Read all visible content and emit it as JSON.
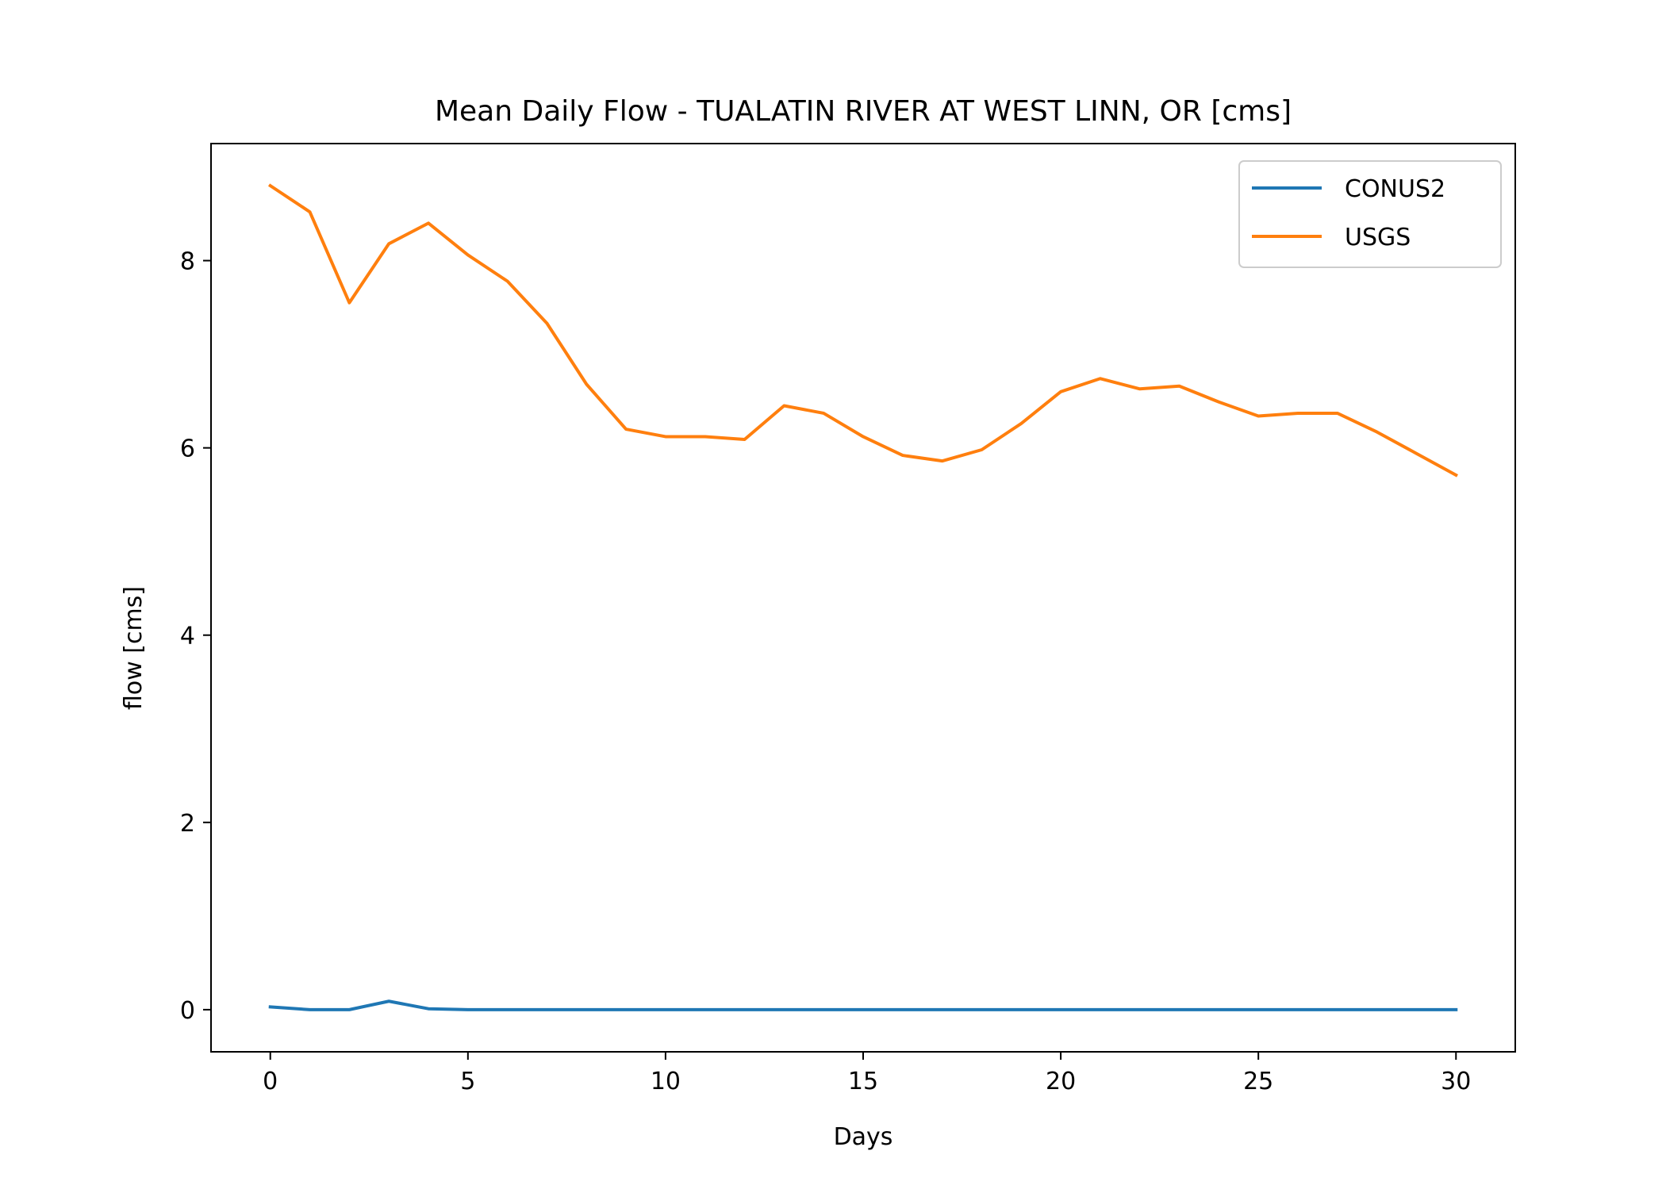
{
  "chart_data": {
    "type": "line",
    "title": "Mean Daily Flow - TUALATIN RIVER AT WEST LINN, OR [cms]",
    "xlabel": "Days",
    "ylabel": "flow [cms]",
    "xlim": [
      -1.5,
      31.5
    ],
    "ylim": [
      -0.45,
      9.25
    ],
    "xticks": [
      0,
      5,
      10,
      15,
      20,
      25,
      30
    ],
    "yticks": [
      0,
      2,
      4,
      6,
      8
    ],
    "grid": false,
    "legend_position": "upper right",
    "x": [
      0,
      1,
      2,
      3,
      4,
      5,
      6,
      7,
      8,
      9,
      10,
      11,
      12,
      13,
      14,
      15,
      16,
      17,
      18,
      19,
      20,
      21,
      22,
      23,
      24,
      25,
      26,
      27,
      28,
      29,
      30
    ],
    "series": [
      {
        "name": "CONUS2",
        "color": "#1f77b4",
        "values": [
          0.03,
          0.0,
          0.0,
          0.09,
          0.01,
          0.0,
          0.0,
          0.0,
          0.0,
          0.0,
          0.0,
          0.0,
          0.0,
          0.0,
          0.0,
          0.0,
          0.0,
          0.0,
          0.0,
          0.0,
          0.0,
          0.0,
          0.0,
          0.0,
          0.0,
          0.0,
          0.0,
          0.0,
          0.0,
          0.0,
          0.0
        ]
      },
      {
        "name": "USGS",
        "color": "#ff7f0e",
        "values": [
          8.8,
          8.52,
          7.55,
          8.18,
          8.4,
          8.06,
          7.78,
          7.33,
          6.68,
          6.2,
          6.12,
          6.12,
          6.09,
          6.45,
          6.37,
          6.12,
          5.92,
          5.86,
          5.98,
          6.26,
          6.6,
          6.74,
          6.63,
          6.66,
          6.49,
          6.34,
          6.37,
          6.37,
          6.17,
          5.94,
          5.71
        ]
      }
    ]
  }
}
